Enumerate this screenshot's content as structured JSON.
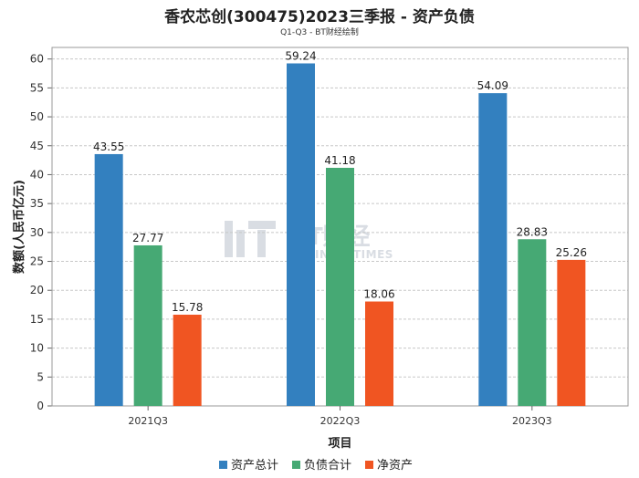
{
  "colors": {
    "total_assets": "#3380bf",
    "total_liabilities": "#46a974",
    "net_assets": "#f05522",
    "grid": "#c8c8c8",
    "plot_border": "#999999",
    "watermark": "#d9dde3"
  },
  "watermark": {
    "cn": "BT财经",
    "en": "BUSINESSTIMES"
  },
  "chart_data": {
    "type": "bar",
    "title": "香农芯创(300475)2023三季报 - 资产负债",
    "subtitle": "Q1-Q3 - BT财经绘制",
    "xlabel": "项目",
    "ylabel": "数额(人民币亿元)",
    "categories": [
      "2021Q3",
      "2022Q3",
      "2023Q3"
    ],
    "ylim": [
      0,
      62
    ],
    "yticks": [
      0,
      5,
      10,
      15,
      20,
      25,
      30,
      35,
      40,
      45,
      50,
      55,
      60
    ],
    "grid": true,
    "legend_position": "bottom-center",
    "series": [
      {
        "name": "资产总计",
        "values": [
          43.55,
          59.24,
          54.09
        ],
        "color": "#3380bf"
      },
      {
        "name": "负债合计",
        "values": [
          27.77,
          41.18,
          28.83
        ],
        "color": "#46a974"
      },
      {
        "name": "净资产",
        "values": [
          15.78,
          18.06,
          25.26
        ],
        "color": "#f05522"
      }
    ]
  }
}
